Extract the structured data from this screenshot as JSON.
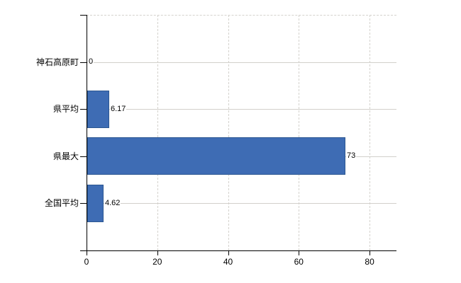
{
  "chart_data": {
    "type": "bar",
    "orientation": "horizontal",
    "title": "",
    "xlabel": "",
    "ylabel": "",
    "categories": [
      "神石高原町",
      "県平均",
      "県最大",
      "全国平均"
    ],
    "values": [
      0,
      6.17,
      73,
      4.62
    ],
    "value_labels": [
      "0",
      "6.17",
      "73",
      "4.62"
    ],
    "x_ticks": [
      0,
      20,
      40,
      60,
      80
    ],
    "x_tick_labels": [
      "0",
      "20",
      "40",
      "60",
      "80"
    ],
    "xlim": [
      0,
      87.6
    ],
    "grid": true,
    "legend_position": "none",
    "colors": {
      "bar_fill": "#3e6cb4",
      "bar_border": "#2c5791",
      "gridline": "#d2d0cb",
      "axis": "#000000",
      "text": "#000000",
      "background": "#ffffff"
    }
  }
}
